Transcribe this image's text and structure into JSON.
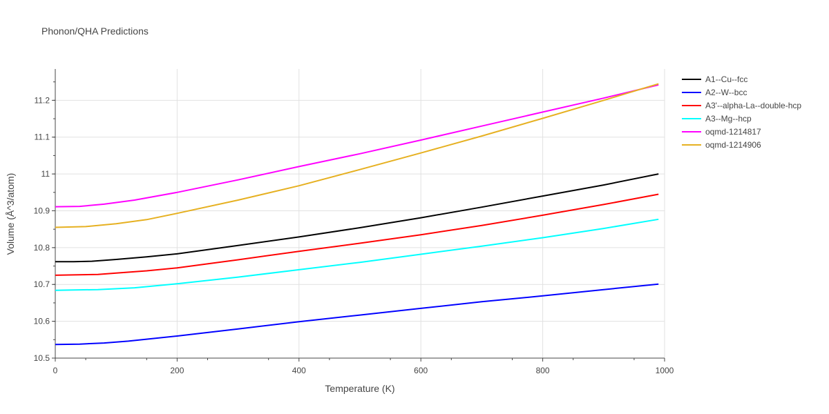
{
  "chart_data": {
    "type": "line",
    "title": "Phonon/QHA Predictions",
    "xlabel": "Temperature (K)",
    "ylabel": "Volume (Å^3/atom)",
    "xlim": [
      0,
      1000
    ],
    "ylim": [
      10.5,
      11.285
    ],
    "x_ticks": [
      0,
      200,
      400,
      600,
      800,
      1000
    ],
    "y_ticks": [
      10.5,
      10.6,
      10.7,
      10.8,
      10.9,
      11,
      11.1,
      11.2
    ],
    "grid": true,
    "legend_position": "top-right",
    "series": [
      {
        "name": "A1--Cu--fcc",
        "color": "#000000",
        "x": [
          0,
          30,
          60,
          100,
          150,
          200,
          300,
          400,
          500,
          600,
          700,
          800,
          900,
          990
        ],
        "y": [
          10.762,
          10.762,
          10.763,
          10.768,
          10.775,
          10.783,
          10.806,
          10.829,
          10.854,
          10.881,
          10.91,
          10.94,
          10.97,
          11.0
        ]
      },
      {
        "name": "A2--W--bcc",
        "color": "#0000ff",
        "x": [
          0,
          40,
          80,
          120,
          200,
          300,
          400,
          500,
          600,
          700,
          800,
          900,
          990
        ],
        "y": [
          10.537,
          10.538,
          10.541,
          10.546,
          10.56,
          10.579,
          10.599,
          10.617,
          10.635,
          10.653,
          10.669,
          10.686,
          10.701
        ]
      },
      {
        "name": "A3'--alpha-La--double-hcp",
        "color": "#ff0000",
        "x": [
          0,
          30,
          70,
          100,
          150,
          200,
          300,
          400,
          500,
          600,
          700,
          800,
          900,
          990
        ],
        "y": [
          10.725,
          10.726,
          10.727,
          10.731,
          10.737,
          10.745,
          10.767,
          10.79,
          10.812,
          10.835,
          10.86,
          10.888,
          10.917,
          10.945
        ]
      },
      {
        "name": "A3--Mg--hcp",
        "color": "#00ffff",
        "x": [
          0,
          30,
          70,
          130,
          200,
          300,
          400,
          500,
          600,
          700,
          800,
          900,
          990
        ],
        "y": [
          10.684,
          10.685,
          10.686,
          10.691,
          10.702,
          10.72,
          10.74,
          10.76,
          10.782,
          10.804,
          10.827,
          10.852,
          10.877
        ]
      },
      {
        "name": "oqmd-1214817",
        "color": "#ff00ff",
        "x": [
          0,
          40,
          80,
          130,
          200,
          300,
          400,
          500,
          600,
          700,
          800,
          900,
          990
        ],
        "y": [
          10.911,
          10.912,
          10.918,
          10.929,
          10.95,
          10.984,
          11.02,
          11.055,
          11.092,
          11.13,
          11.168,
          11.206,
          11.242
        ]
      },
      {
        "name": "oqmd-1214906",
        "color": "#e6b020",
        "x": [
          0,
          50,
          100,
          150,
          200,
          300,
          400,
          500,
          600,
          700,
          800,
          900,
          990
        ],
        "y": [
          10.855,
          10.857,
          10.865,
          10.876,
          10.893,
          10.929,
          10.968,
          11.012,
          11.057,
          11.103,
          11.151,
          11.2,
          11.245
        ]
      }
    ]
  }
}
